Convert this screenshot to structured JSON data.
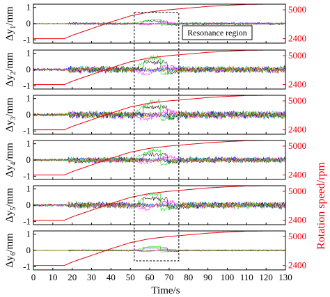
{
  "chart_data": {
    "type": "line",
    "xlabel": "Time/s",
    "x_ticks": [
      "0",
      "10",
      "20",
      "30",
      "40",
      "50",
      "60",
      "70",
      "80",
      "90",
      "100",
      "110",
      "120",
      "130"
    ],
    "xlim": [
      0,
      130
    ],
    "right_ylabel": "Rotation speed/rpm",
    "left_ylim": [
      -1.2,
      1.2
    ],
    "left_ticks": [
      "1",
      "0",
      "-1"
    ],
    "right_ylim": [
      2000,
      5500
    ],
    "right_ticks": [
      "5000",
      "2400"
    ],
    "annotation": "Resonance region",
    "resonance_x": [
      52,
      75
    ],
    "panels": [
      {
        "ylabel_main": "Δy",
        "ylabel_sub": "1",
        "ylabel_unit": "/mm",
        "amp": 0.08,
        "peak": 0.25
      },
      {
        "ylabel_main": "Δy",
        "ylabel_sub": "2",
        "ylabel_unit": "/mm",
        "amp": 0.25,
        "peak": 0.75
      },
      {
        "ylabel_main": "Δy",
        "ylabel_sub": "3",
        "ylabel_unit": "/mm",
        "amp": 0.28,
        "peak": 0.8
      },
      {
        "ylabel_main": "Δy",
        "ylabel_sub": "4",
        "ylabel_unit": "/mm",
        "amp": 0.22,
        "peak": 0.6
      },
      {
        "ylabel_main": "Δy",
        "ylabel_sub": "5",
        "ylabel_unit": "/mm",
        "amp": 0.25,
        "peak": 0.7
      },
      {
        "ylabel_main": "Δy",
        "ylabel_sub": "6",
        "ylabel_unit": "/mm",
        "amp": 0.05,
        "peak": 0.25
      }
    ],
    "speed_curve": {
      "x": [
        0,
        16,
        20,
        30,
        40,
        50,
        60,
        70,
        80,
        90,
        100,
        110,
        120,
        130
      ],
      "y": [
        2400,
        2400,
        2700,
        3300,
        3900,
        4450,
        4800,
        5000,
        5150,
        5300,
        5400,
        5480,
        5500,
        5500
      ]
    },
    "series_colors": [
      "#0000ff",
      "#00aaff",
      "#ff00ff",
      "#000000",
      "#00cc00",
      "#ff8800"
    ],
    "speed_color": "#e8000b"
  }
}
